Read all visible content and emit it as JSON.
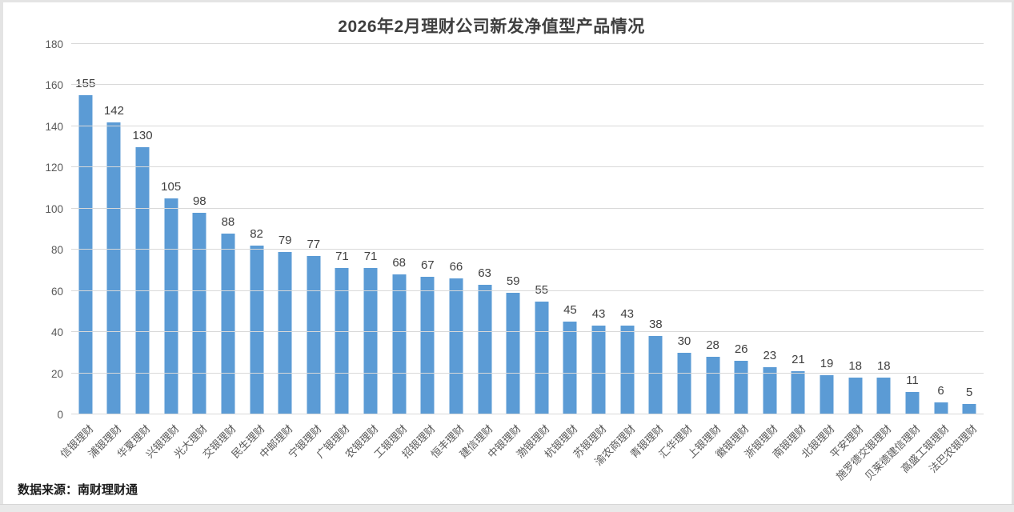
{
  "page": {
    "source_note": "数据来源：南财理财通"
  },
  "colors": {
    "bar": "#5B9BD5",
    "grid": "#D9D9D9",
    "title_text": "#3F3F3F",
    "axis_text": "#595959",
    "value_label_text": "#404040",
    "source_text": "#1A1A1A",
    "background": "#FFFFFF",
    "bottom_strip": "#E9E9E9"
  },
  "chart_data": {
    "type": "bar",
    "title": "2026年2月理财公司新发净值型产品情况",
    "xlabel": "",
    "ylabel": "",
    "ylim": [
      0,
      180
    ],
    "yticks": [
      0,
      20,
      40,
      60,
      80,
      100,
      120,
      140,
      160,
      180
    ],
    "grid": true,
    "legend": "none",
    "value_labels_shown": true,
    "categories": [
      "信银理财",
      "浦银理财",
      "华夏理财",
      "兴银理财",
      "光大理财",
      "交银理财",
      "民生理财",
      "中邮理财",
      "宁银理财",
      "广银理财",
      "农银理财",
      "工银理财",
      "招银理财",
      "恒丰理财",
      "建信理财",
      "中银理财",
      "渤银理财",
      "杭银理财",
      "苏银理财",
      "渝农商理财",
      "青银理财",
      "汇华理财",
      "上银理财",
      "徽银理财",
      "浙银理财",
      "南银理财",
      "北银理财",
      "平安理财",
      "施罗德交银理财",
      "贝莱德建信理财",
      "高盛工银理财",
      "法巴农银理财"
    ],
    "values": [
      155,
      142,
      130,
      105,
      98,
      88,
      82,
      79,
      77,
      71,
      71,
      68,
      67,
      66,
      63,
      59,
      55,
      45,
      43,
      43,
      38,
      30,
      28,
      26,
      23,
      21,
      19,
      18,
      18,
      11,
      6,
      5
    ]
  }
}
